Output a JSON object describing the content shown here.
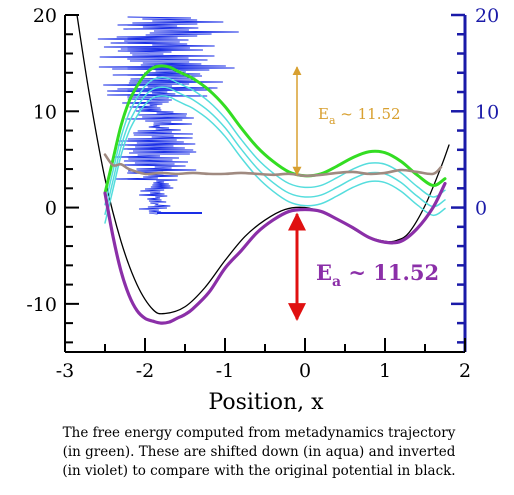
{
  "chart_data": {
    "type": "line",
    "xlabel": "Position, x",
    "ylabel": "",
    "xlim": [
      -3,
      2
    ],
    "ylim": [
      -15,
      20
    ],
    "x_ticks": [
      "-3",
      "-2",
      "-1",
      "0",
      "1",
      "2"
    ],
    "y_ticks_left": [
      "-10",
      "0",
      "10",
      "20"
    ],
    "y_ticks_right": [
      "0",
      "10",
      "20"
    ],
    "grid": false,
    "series": [
      {
        "color": "#000000",
        "x": [
          -2.85,
          -2.7,
          -2.5,
          -2.3,
          -2.1,
          -1.9,
          -1.75,
          -1.5,
          -1.25,
          -1.0,
          -0.75,
          -0.5,
          -0.25,
          0.0,
          0.25,
          0.5,
          0.75,
          1.0,
          1.15,
          1.3,
          1.5,
          1.7,
          1.8
        ],
        "y": [
          20,
          12,
          3,
          -3.5,
          -8,
          -10.6,
          -11,
          -10.3,
          -8.3,
          -5.5,
          -3,
          -1.3,
          -0.2,
          0,
          -0.6,
          -1.7,
          -2.9,
          -3.5,
          -3.4,
          -2.6,
          0.2,
          4.2,
          6.5
        ]
      },
      {
        "color": "#33dd22",
        "x": [
          -2.5,
          -2.4,
          -2.3,
          -2.2,
          -2.1,
          -2.0,
          -1.9,
          -1.8,
          -1.7,
          -1.6,
          -1.5,
          -1.4,
          -1.2,
          -1.0,
          -0.8,
          -0.6,
          -0.4,
          -0.2,
          0.0,
          0.2,
          0.4,
          0.6,
          0.8,
          1.0,
          1.2,
          1.4,
          1.6,
          1.75
        ],
        "y": [
          1.5,
          5,
          8.5,
          11,
          12.6,
          13.8,
          14.5,
          14.7,
          14.6,
          14.2,
          13.8,
          13.4,
          12.2,
          10.5,
          8.3,
          6.3,
          4.8,
          3.7,
          3.3,
          3.5,
          4.3,
          5.2,
          5.8,
          5.7,
          4.8,
          3.4,
          2.3,
          3
        ]
      },
      {
        "color": "#55dddd",
        "x": [
          -2.5,
          -2.4,
          -2.3,
          -2.2,
          -2.1,
          -2.0,
          -1.9,
          -1.8,
          -1.7,
          -1.6,
          -1.5,
          -1.4,
          -1.2,
          -1.0,
          -0.8,
          -0.6,
          -0.4,
          -0.2,
          0.0,
          0.2,
          0.4,
          0.6,
          0.8,
          1.0,
          1.2,
          1.4,
          1.6,
          1.75
        ],
        "y": [
          0.3,
          3.8,
          7.3,
          9.8,
          11.4,
          12.6,
          13.3,
          13.5,
          13.4,
          13.0,
          12.6,
          12.2,
          11.0,
          9.3,
          7.1,
          5.1,
          3.6,
          2.5,
          2.1,
          2.3,
          3.1,
          4.0,
          4.6,
          4.5,
          3.6,
          2.2,
          1.1,
          1.8
        ]
      },
      {
        "color": "#55dddd",
        "x": [
          -2.5,
          -2.4,
          -2.3,
          -2.2,
          -2.1,
          -2.0,
          -1.9,
          -1.8,
          -1.7,
          -1.6,
          -1.5,
          -1.4,
          -1.2,
          -1.0,
          -0.8,
          -0.6,
          -0.4,
          -0.2,
          0.0,
          0.2,
          0.4,
          0.6,
          0.8,
          1.0,
          1.2,
          1.4,
          1.6,
          1.75
        ],
        "y": [
          -0.7,
          2.8,
          6.3,
          8.8,
          10.4,
          11.6,
          12.3,
          12.5,
          12.4,
          12.0,
          11.6,
          11.2,
          10.0,
          8.3,
          6.1,
          4.1,
          2.6,
          1.5,
          1.1,
          1.3,
          2.1,
          3.0,
          3.6,
          3.5,
          2.6,
          1.2,
          0.1,
          0.8
        ]
      },
      {
        "color": "#55dddd",
        "x": [
          -2.5,
          -2.4,
          -2.3,
          -2.2,
          -2.1,
          -2.0,
          -1.9,
          -1.8,
          -1.7,
          -1.6,
          -1.5,
          -1.4,
          -1.2,
          -1.0,
          -0.8,
          -0.6,
          -0.4,
          -0.2,
          0.0,
          0.2,
          0.4,
          0.6,
          0.8,
          1.0,
          1.2,
          1.4,
          1.6,
          1.75
        ],
        "y": [
          -1.6,
          1.9,
          5.4,
          7.9,
          9.5,
          10.7,
          11.4,
          11.6,
          11.5,
          11.1,
          10.7,
          10.3,
          9.1,
          7.4,
          5.2,
          3.2,
          1.7,
          0.6,
          0.2,
          0.4,
          1.2,
          2.1,
          2.7,
          2.6,
          1.7,
          0.3,
          -0.8,
          -0.1
        ]
      },
      {
        "color": "#8b2fa8",
        "x": [
          -2.5,
          -2.4,
          -2.3,
          -2.2,
          -2.1,
          -2.0,
          -1.9,
          -1.8,
          -1.7,
          -1.6,
          -1.5,
          -1.4,
          -1.2,
          -1.0,
          -0.8,
          -0.6,
          -0.4,
          -0.2,
          0.0,
          0.2,
          0.4,
          0.6,
          0.8,
          1.0,
          1.2,
          1.4,
          1.6,
          1.75
        ],
        "y": [
          1.5,
          -3,
          -6.6,
          -9.1,
          -10.7,
          -11.5,
          -11.8,
          -12,
          -11.9,
          -11.5,
          -11.1,
          -10.5,
          -8.8,
          -6.3,
          -4.5,
          -2.6,
          -1.3,
          -0.4,
          -0.2,
          -0.4,
          -1.2,
          -2.1,
          -3.1,
          -3.6,
          -3.5,
          -2.2,
          0,
          2.5
        ]
      },
      {
        "color": "#a08a80",
        "x": [
          -2.5,
          -2.4,
          -2.3,
          -2.2,
          -2.0,
          -1.8,
          -1.6,
          -1.4,
          -1.2,
          -1.0,
          -0.8,
          -0.6,
          -0.4,
          -0.2,
          0.0,
          0.2,
          0.4,
          0.6,
          0.8,
          1.0,
          1.2,
          1.4,
          1.6,
          1.7
        ],
        "y": [
          5.5,
          4.4,
          4.5,
          4.0,
          3.5,
          3.6,
          3.5,
          3.6,
          3.5,
          3.5,
          3.6,
          3.5,
          3.4,
          3.5,
          3.3,
          3.4,
          3.6,
          3.7,
          3.5,
          3.6,
          3.9,
          3.7,
          3.5,
          4.2
        ]
      }
    ],
    "annotations": [
      {
        "text": "E",
        "sub": "a",
        "rest": " ~ 11.52",
        "color": "#d8a030"
      },
      {
        "text": "E",
        "sub": "a",
        "rest": " ~ 11.52",
        "color": "#8b2fa8"
      }
    ]
  },
  "caption": {
    "line1": "The free energy computed from metadynamics trajectory",
    "line2": "(in green). These are shifted down (in aqua) and inverted",
    "line3": "(in violet) to compare with the original potential in black."
  },
  "colors": {
    "right_axis": "#1a1aa8",
    "trajectory": "#1a2ee6",
    "barrier_arrow_red": "#e01010",
    "barrier_arrow_orange": "#d8a030"
  }
}
